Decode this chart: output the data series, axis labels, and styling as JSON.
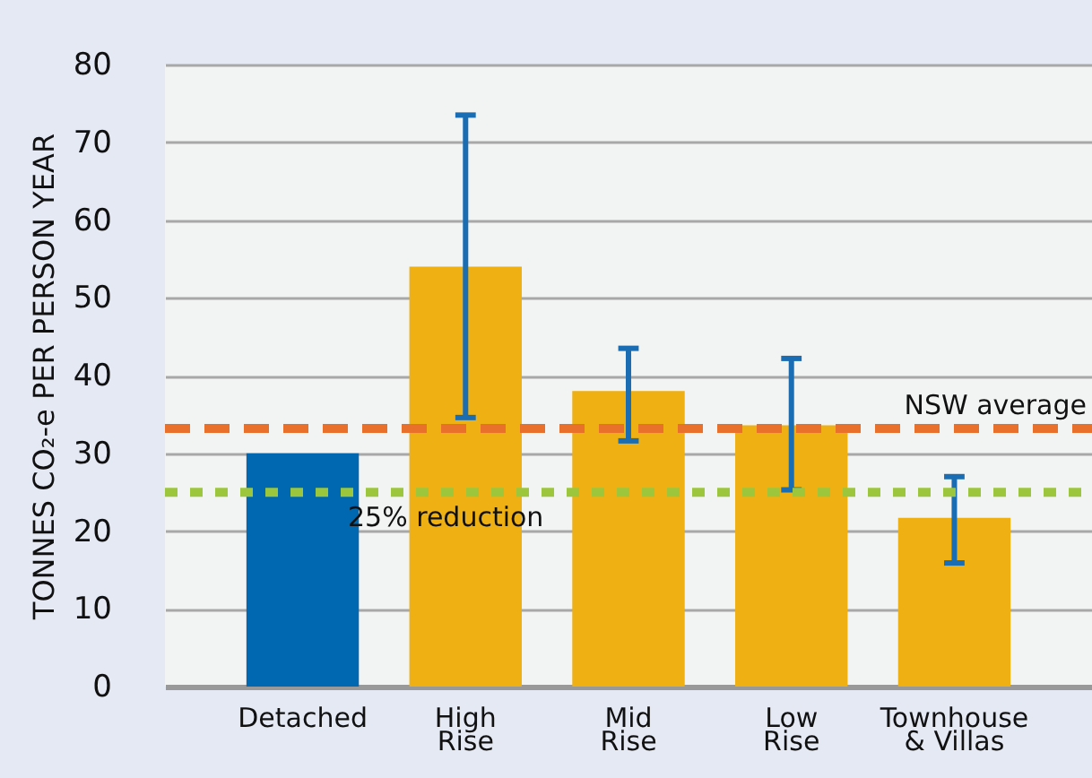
{
  "chart_data": {
    "type": "bar",
    "ylabel": "TONNES CO₂-e PER PERSON YEAR",
    "categories": [
      "Detached",
      "High\nRise",
      "Mid\nRise",
      "Low\nRise",
      "Townhouse\n& Villas"
    ],
    "values": [
      30,
      54,
      38,
      33.6,
      21.7
    ],
    "colors": [
      "#0067b1",
      "#eeb012",
      "#eeb012",
      "#eeb012",
      "#eeb012"
    ],
    "errors": [
      null,
      [
        34.6,
        73.5
      ],
      [
        31.6,
        43.5
      ],
      [
        25.3,
        42.2
      ],
      [
        15.9,
        27
      ]
    ],
    "ylim": [
      0,
      80
    ],
    "yticks": [
      0,
      10,
      20,
      30,
      40,
      50,
      60,
      70,
      80
    ],
    "grid": "y",
    "ref_lines": [
      {
        "axis": "y",
        "value": 33.2,
        "label": "NSW average",
        "color": "#e8702a",
        "line_style": "dashed"
      },
      {
        "axis": "y",
        "value": 25,
        "label": "25% reduction",
        "color": "#9cc63c",
        "line_style": "dotted"
      }
    ]
  }
}
